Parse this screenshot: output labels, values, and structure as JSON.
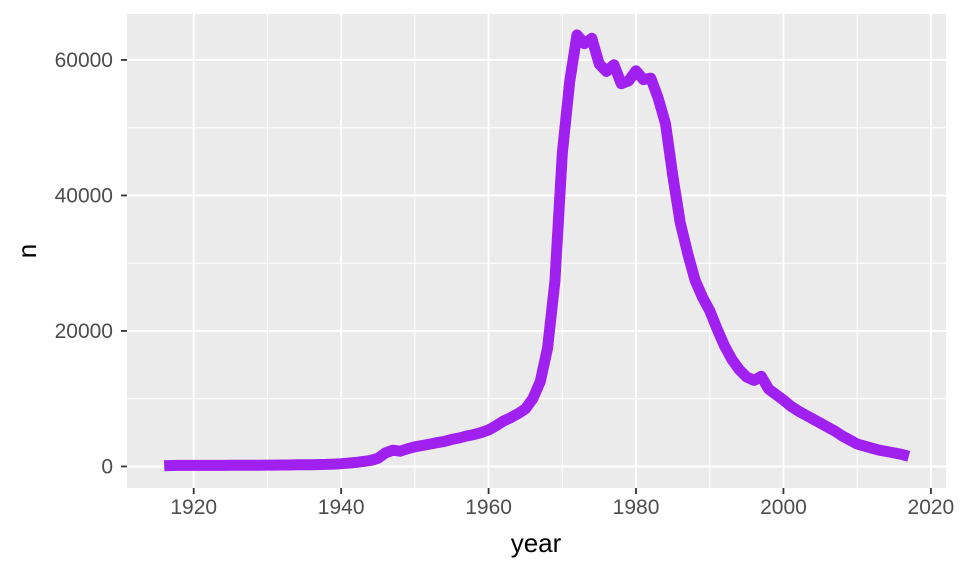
{
  "chart_data": {
    "type": "line",
    "title": "",
    "xlabel": "year",
    "ylabel": "n",
    "legend": "none",
    "grid": "on",
    "panel_bg": "#EBEBEB",
    "grid_color": "#FFFFFF",
    "line_color": "#A020F0",
    "line_width": 11,
    "tick_mark_color": "#333333",
    "tick_label_color": "#4D4D4D",
    "axis_title_color": "#000000",
    "x_range": [
      1910.95,
      2022.05
    ],
    "y_range": [
      -3180,
      66780
    ],
    "x_ticks_major": [
      1920,
      1940,
      1960,
      1980,
      2000,
      2020
    ],
    "x_ticks_minor": [
      1930,
      1950,
      1970,
      1990,
      2010
    ],
    "y_ticks_major": [
      0,
      20000,
      40000,
      60000
    ],
    "y_ticks_minor": [
      10000,
      30000,
      50000
    ],
    "series": [
      {
        "name": "n",
        "points": [
          [
            1916,
            100
          ],
          [
            1917,
            140
          ],
          [
            1918,
            160
          ],
          [
            1919,
            150
          ],
          [
            1920,
            150
          ],
          [
            1921,
            160
          ],
          [
            1922,
            150
          ],
          [
            1923,
            160
          ],
          [
            1924,
            160
          ],
          [
            1925,
            170
          ],
          [
            1926,
            170
          ],
          [
            1927,
            180
          ],
          [
            1928,
            180
          ],
          [
            1929,
            190
          ],
          [
            1930,
            200
          ],
          [
            1931,
            200
          ],
          [
            1932,
            210
          ],
          [
            1933,
            220
          ],
          [
            1934,
            240
          ],
          [
            1935,
            250
          ],
          [
            1936,
            260
          ],
          [
            1937,
            290
          ],
          [
            1938,
            310
          ],
          [
            1939,
            350
          ],
          [
            1940,
            400
          ],
          [
            1941,
            500
          ],
          [
            1942,
            600
          ],
          [
            1943,
            750
          ],
          [
            1944,
            900
          ],
          [
            1945,
            1200
          ],
          [
            1946,
            2000
          ],
          [
            1947,
            2400
          ],
          [
            1948,
            2250
          ],
          [
            1949,
            2600
          ],
          [
            1950,
            2900
          ],
          [
            1951,
            3100
          ],
          [
            1952,
            3300
          ],
          [
            1953,
            3500
          ],
          [
            1954,
            3700
          ],
          [
            1955,
            4000
          ],
          [
            1956,
            4200
          ],
          [
            1957,
            4500
          ],
          [
            1958,
            4700
          ],
          [
            1959,
            5000
          ],
          [
            1960,
            5400
          ],
          [
            1961,
            6000
          ],
          [
            1962,
            6700
          ],
          [
            1963,
            7200
          ],
          [
            1964,
            7800
          ],
          [
            1965,
            8500
          ],
          [
            1966,
            10000
          ],
          [
            1967,
            12500
          ],
          [
            1968,
            17500
          ],
          [
            1969,
            27300
          ],
          [
            1970,
            46200
          ],
          [
            1971,
            56800
          ],
          [
            1972,
            63700
          ],
          [
            1973,
            62400
          ],
          [
            1974,
            63200
          ],
          [
            1975,
            59400
          ],
          [
            1976,
            58300
          ],
          [
            1977,
            59300
          ],
          [
            1978,
            56500
          ],
          [
            1979,
            56900
          ],
          [
            1980,
            58400
          ],
          [
            1981,
            57100
          ],
          [
            1982,
            57300
          ],
          [
            1983,
            54400
          ],
          [
            1984,
            50600
          ],
          [
            1985,
            42800
          ],
          [
            1986,
            36000
          ],
          [
            1987,
            31500
          ],
          [
            1988,
            27500
          ],
          [
            1989,
            25000
          ],
          [
            1990,
            23000
          ],
          [
            1991,
            20300
          ],
          [
            1992,
            17800
          ],
          [
            1993,
            15800
          ],
          [
            1994,
            14300
          ],
          [
            1995,
            13200
          ],
          [
            1996,
            12700
          ],
          [
            1997,
            13300
          ],
          [
            1998,
            11400
          ],
          [
            1999,
            10600
          ],
          [
            2000,
            9800
          ],
          [
            2001,
            8900
          ],
          [
            2002,
            8200
          ],
          [
            2003,
            7600
          ],
          [
            2004,
            7000
          ],
          [
            2005,
            6400
          ],
          [
            2006,
            5800
          ],
          [
            2007,
            5200
          ],
          [
            2008,
            4500
          ],
          [
            2009,
            3900
          ],
          [
            2010,
            3300
          ],
          [
            2011,
            3000
          ],
          [
            2012,
            2700
          ],
          [
            2013,
            2400
          ],
          [
            2014,
            2200
          ],
          [
            2015,
            2000
          ],
          [
            2016,
            1800
          ],
          [
            2017,
            1500
          ]
        ]
      }
    ]
  }
}
